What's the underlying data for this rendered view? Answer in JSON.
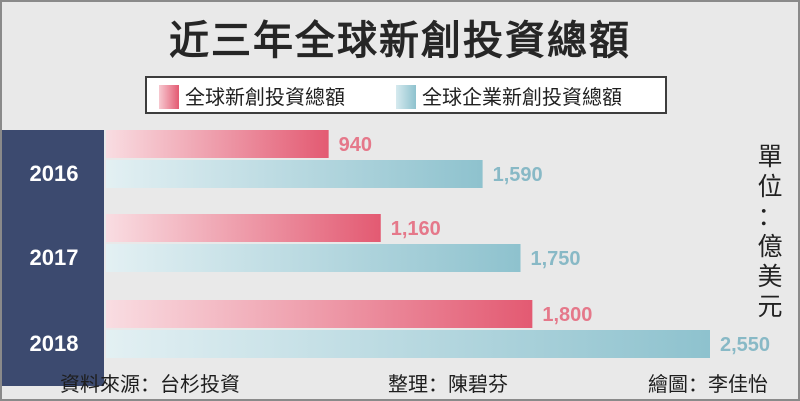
{
  "title": "近三年全球新創投資總額",
  "legend": {
    "series_a": "全球新創投資總額",
    "series_b": "全球企業新創投資總額"
  },
  "unit": [
    "單",
    "位",
    "：",
    "億",
    "美",
    "元"
  ],
  "footer": {
    "source": "資料來源：台杉投資",
    "editor": "整理：陳碧芬",
    "illustrator": "繪圖：李佳怡"
  },
  "colors": {
    "series_a": "#e35a72",
    "series_a_label": "#e5788a",
    "series_b": "#8ec2ce",
    "series_b_label": "#88b9c6",
    "year_bg": "#3c4a6f"
  },
  "chart_data": {
    "type": "bar",
    "orientation": "horizontal",
    "categories": [
      "2016",
      "2017",
      "2018"
    ],
    "series": [
      {
        "name": "全球新創投資總額",
        "values": [
          940,
          1160,
          1800
        ],
        "labels": [
          "940",
          "1,160",
          "1,800"
        ]
      },
      {
        "name": "全球企業新創投資總額",
        "values": [
          1590,
          1750,
          2550
        ],
        "labels": [
          "1,590",
          "1,750",
          "2,550"
        ]
      }
    ],
    "xlim": [
      0,
      2550
    ]
  }
}
